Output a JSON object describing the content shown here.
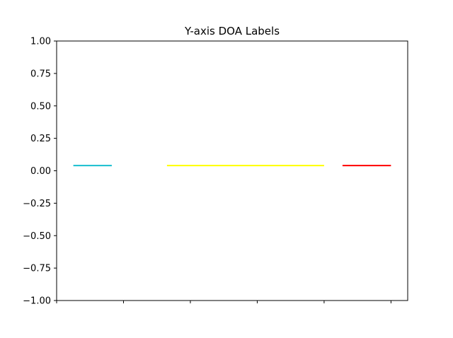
{
  "chart_data": {
    "type": "line",
    "title": "Y-axis DOA Labels",
    "xlabel": "",
    "ylabel": "",
    "ylim": [
      -1.0,
      1.0
    ],
    "xlim": [
      0,
      10.5
    ],
    "yticks": [
      1.0,
      0.75,
      0.5,
      0.25,
      0.0,
      -0.25,
      -0.5,
      -0.75,
      -1.0
    ],
    "ytick_labels": [
      "1.00",
      "0.75",
      "0.50",
      "0.25",
      "0.00",
      "−0.25",
      "−0.50",
      "−0.75",
      "−1.00"
    ],
    "xticks": [
      0,
      2,
      4,
      6,
      8,
      10
    ],
    "xtick_labels": [
      "",
      "",
      "",
      "",
      "",
      ""
    ],
    "grid": false,
    "legend": "none",
    "series": [
      {
        "color": "#17becf",
        "x": [
          0.5,
          1.65
        ],
        "y": [
          0.04,
          0.04
        ]
      },
      {
        "color": "#ffff00",
        "x": [
          3.3,
          8.0
        ],
        "y": [
          0.04,
          0.04
        ]
      },
      {
        "color": "#ff0000",
        "x": [
          8.55,
          10.0
        ],
        "y": [
          0.04,
          0.04
        ]
      }
    ]
  }
}
